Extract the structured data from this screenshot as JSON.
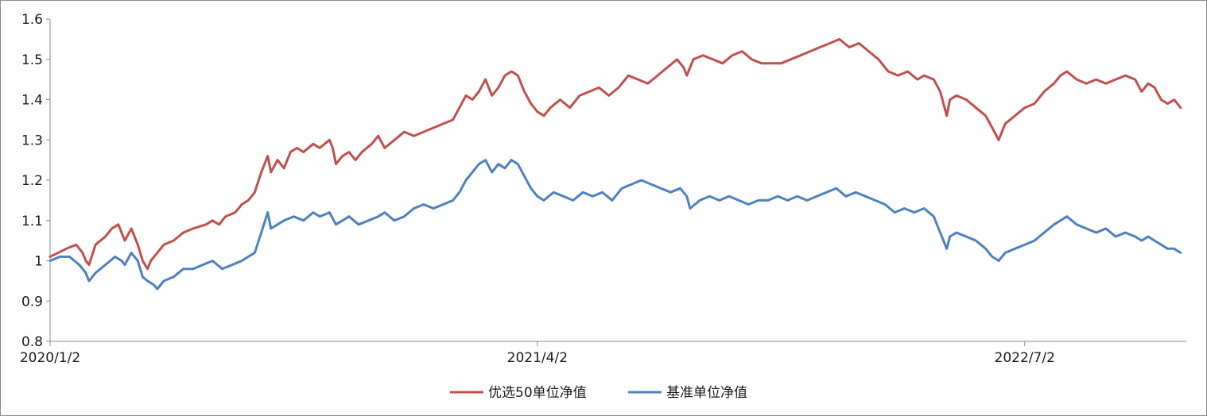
{
  "chart_data": {
    "type": "line",
    "title": "",
    "xlabel": "",
    "ylabel": "",
    "x_tick_labels": [
      "2020/1/2",
      "2021/4/2",
      "2022/7/2"
    ],
    "x_tick_months": [
      0,
      15,
      30
    ],
    "x_range_months": [
      0,
      35
    ],
    "ylim": [
      0.8,
      1.6
    ],
    "y_ticks": [
      0.8,
      0.9,
      1.0,
      1.1,
      1.2,
      1.3,
      1.4,
      1.5,
      1.6
    ],
    "y_tick_labels": [
      "0.8",
      "0.9",
      "1",
      "1.1",
      "1.2",
      "1.3",
      "1.4",
      "1.5",
      "1.6"
    ],
    "grid": false,
    "legend_position": "bottom",
    "series": [
      {
        "name": "优选50单位净值",
        "color": "#c0504d",
        "points": [
          [
            0.0,
            1.01
          ],
          [
            0.5,
            1.03
          ],
          [
            0.8,
            1.04
          ],
          [
            1.0,
            1.02
          ],
          [
            1.1,
            1.0
          ],
          [
            1.2,
            0.99
          ],
          [
            1.4,
            1.04
          ],
          [
            1.7,
            1.06
          ],
          [
            1.9,
            1.08
          ],
          [
            2.1,
            1.09
          ],
          [
            2.3,
            1.05
          ],
          [
            2.5,
            1.08
          ],
          [
            2.6,
            1.06
          ],
          [
            2.7,
            1.04
          ],
          [
            2.85,
            1.0
          ],
          [
            3.0,
            0.98
          ],
          [
            3.1,
            1.0
          ],
          [
            3.3,
            1.02
          ],
          [
            3.5,
            1.04
          ],
          [
            3.8,
            1.05
          ],
          [
            4.1,
            1.07
          ],
          [
            4.4,
            1.08
          ],
          [
            4.8,
            1.09
          ],
          [
            5.0,
            1.1
          ],
          [
            5.2,
            1.09
          ],
          [
            5.4,
            1.11
          ],
          [
            5.7,
            1.12
          ],
          [
            5.9,
            1.14
          ],
          [
            6.1,
            1.15
          ],
          [
            6.3,
            1.17
          ],
          [
            6.5,
            1.22
          ],
          [
            6.7,
            1.26
          ],
          [
            6.8,
            1.22
          ],
          [
            7.0,
            1.25
          ],
          [
            7.2,
            1.23
          ],
          [
            7.4,
            1.27
          ],
          [
            7.6,
            1.28
          ],
          [
            7.8,
            1.27
          ],
          [
            8.1,
            1.29
          ],
          [
            8.3,
            1.28
          ],
          [
            8.6,
            1.3
          ],
          [
            8.7,
            1.28
          ],
          [
            8.8,
            1.24
          ],
          [
            9.0,
            1.26
          ],
          [
            9.2,
            1.27
          ],
          [
            9.4,
            1.25
          ],
          [
            9.6,
            1.27
          ],
          [
            9.9,
            1.29
          ],
          [
            10.1,
            1.31
          ],
          [
            10.3,
            1.28
          ],
          [
            10.6,
            1.3
          ],
          [
            10.9,
            1.32
          ],
          [
            11.2,
            1.31
          ],
          [
            11.5,
            1.32
          ],
          [
            11.8,
            1.33
          ],
          [
            12.1,
            1.34
          ],
          [
            12.4,
            1.35
          ],
          [
            12.6,
            1.38
          ],
          [
            12.8,
            1.41
          ],
          [
            13.0,
            1.4
          ],
          [
            13.2,
            1.42
          ],
          [
            13.4,
            1.45
          ],
          [
            13.5,
            1.43
          ],
          [
            13.6,
            1.41
          ],
          [
            13.8,
            1.43
          ],
          [
            14.0,
            1.46
          ],
          [
            14.2,
            1.47
          ],
          [
            14.4,
            1.46
          ],
          [
            14.6,
            1.42
          ],
          [
            14.8,
            1.39
          ],
          [
            15.0,
            1.37
          ],
          [
            15.2,
            1.36
          ],
          [
            15.4,
            1.38
          ],
          [
            15.7,
            1.4
          ],
          [
            16.0,
            1.38
          ],
          [
            16.3,
            1.41
          ],
          [
            16.6,
            1.42
          ],
          [
            16.9,
            1.43
          ],
          [
            17.2,
            1.41
          ],
          [
            17.5,
            1.43
          ],
          [
            17.8,
            1.46
          ],
          [
            18.1,
            1.45
          ],
          [
            18.4,
            1.44
          ],
          [
            18.7,
            1.46
          ],
          [
            19.0,
            1.48
          ],
          [
            19.3,
            1.5
          ],
          [
            19.5,
            1.48
          ],
          [
            19.6,
            1.46
          ],
          [
            19.8,
            1.5
          ],
          [
            20.1,
            1.51
          ],
          [
            20.4,
            1.5
          ],
          [
            20.7,
            1.49
          ],
          [
            21.0,
            1.51
          ],
          [
            21.3,
            1.52
          ],
          [
            21.6,
            1.5
          ],
          [
            21.9,
            1.49
          ],
          [
            22.2,
            1.49
          ],
          [
            22.5,
            1.49
          ],
          [
            22.8,
            1.5
          ],
          [
            23.1,
            1.51
          ],
          [
            23.4,
            1.52
          ],
          [
            23.7,
            1.53
          ],
          [
            24.0,
            1.54
          ],
          [
            24.3,
            1.55
          ],
          [
            24.6,
            1.53
          ],
          [
            24.9,
            1.54
          ],
          [
            25.2,
            1.52
          ],
          [
            25.5,
            1.5
          ],
          [
            25.8,
            1.47
          ],
          [
            26.1,
            1.46
          ],
          [
            26.4,
            1.47
          ],
          [
            26.7,
            1.45
          ],
          [
            26.9,
            1.46
          ],
          [
            27.2,
            1.45
          ],
          [
            27.4,
            1.42
          ],
          [
            27.6,
            1.36
          ],
          [
            27.7,
            1.4
          ],
          [
            27.9,
            1.41
          ],
          [
            28.2,
            1.4
          ],
          [
            28.5,
            1.38
          ],
          [
            28.8,
            1.36
          ],
          [
            29.0,
            1.33
          ],
          [
            29.2,
            1.3
          ],
          [
            29.4,
            1.34
          ],
          [
            29.7,
            1.36
          ],
          [
            30.0,
            1.38
          ],
          [
            30.3,
            1.39
          ],
          [
            30.6,
            1.42
          ],
          [
            30.9,
            1.44
          ],
          [
            31.1,
            1.46
          ],
          [
            31.3,
            1.47
          ],
          [
            31.6,
            1.45
          ],
          [
            31.9,
            1.44
          ],
          [
            32.2,
            1.45
          ],
          [
            32.5,
            1.44
          ],
          [
            32.8,
            1.45
          ],
          [
            33.1,
            1.46
          ],
          [
            33.4,
            1.45
          ],
          [
            33.6,
            1.42
          ],
          [
            33.8,
            1.44
          ],
          [
            34.0,
            1.43
          ],
          [
            34.2,
            1.4
          ],
          [
            34.4,
            1.39
          ],
          [
            34.6,
            1.4
          ],
          [
            34.8,
            1.38
          ]
        ]
      },
      {
        "name": "基准单位净值",
        "color": "#4f81bd",
        "points": [
          [
            0.0,
            1.0
          ],
          [
            0.3,
            1.01
          ],
          [
            0.6,
            1.01
          ],
          [
            0.9,
            0.99
          ],
          [
            1.1,
            0.97
          ],
          [
            1.2,
            0.95
          ],
          [
            1.4,
            0.97
          ],
          [
            1.7,
            0.99
          ],
          [
            2.0,
            1.01
          ],
          [
            2.2,
            1.0
          ],
          [
            2.3,
            0.99
          ],
          [
            2.5,
            1.02
          ],
          [
            2.7,
            1.0
          ],
          [
            2.85,
            0.96
          ],
          [
            3.0,
            0.95
          ],
          [
            3.2,
            0.94
          ],
          [
            3.3,
            0.93
          ],
          [
            3.5,
            0.95
          ],
          [
            3.8,
            0.96
          ],
          [
            4.1,
            0.98
          ],
          [
            4.4,
            0.98
          ],
          [
            4.7,
            0.99
          ],
          [
            5.0,
            1.0
          ],
          [
            5.3,
            0.98
          ],
          [
            5.6,
            0.99
          ],
          [
            5.9,
            1.0
          ],
          [
            6.1,
            1.01
          ],
          [
            6.3,
            1.02
          ],
          [
            6.5,
            1.07
          ],
          [
            6.7,
            1.12
          ],
          [
            6.8,
            1.08
          ],
          [
            7.0,
            1.09
          ],
          [
            7.2,
            1.1
          ],
          [
            7.5,
            1.11
          ],
          [
            7.8,
            1.1
          ],
          [
            8.1,
            1.12
          ],
          [
            8.3,
            1.11
          ],
          [
            8.6,
            1.12
          ],
          [
            8.8,
            1.09
          ],
          [
            9.0,
            1.1
          ],
          [
            9.2,
            1.11
          ],
          [
            9.5,
            1.09
          ],
          [
            9.8,
            1.1
          ],
          [
            10.1,
            1.11
          ],
          [
            10.3,
            1.12
          ],
          [
            10.6,
            1.1
          ],
          [
            10.9,
            1.11
          ],
          [
            11.2,
            1.13
          ],
          [
            11.5,
            1.14
          ],
          [
            11.8,
            1.13
          ],
          [
            12.1,
            1.14
          ],
          [
            12.4,
            1.15
          ],
          [
            12.6,
            1.17
          ],
          [
            12.8,
            1.2
          ],
          [
            13.0,
            1.22
          ],
          [
            13.2,
            1.24
          ],
          [
            13.4,
            1.25
          ],
          [
            13.6,
            1.22
          ],
          [
            13.8,
            1.24
          ],
          [
            14.0,
            1.23
          ],
          [
            14.2,
            1.25
          ],
          [
            14.4,
            1.24
          ],
          [
            14.6,
            1.21
          ],
          [
            14.8,
            1.18
          ],
          [
            15.0,
            1.16
          ],
          [
            15.2,
            1.15
          ],
          [
            15.5,
            1.17
          ],
          [
            15.8,
            1.16
          ],
          [
            16.1,
            1.15
          ],
          [
            16.4,
            1.17
          ],
          [
            16.7,
            1.16
          ],
          [
            17.0,
            1.17
          ],
          [
            17.3,
            1.15
          ],
          [
            17.6,
            1.18
          ],
          [
            17.9,
            1.19
          ],
          [
            18.2,
            1.2
          ],
          [
            18.5,
            1.19
          ],
          [
            18.8,
            1.18
          ],
          [
            19.1,
            1.17
          ],
          [
            19.4,
            1.18
          ],
          [
            19.6,
            1.16
          ],
          [
            19.7,
            1.13
          ],
          [
            20.0,
            1.15
          ],
          [
            20.3,
            1.16
          ],
          [
            20.6,
            1.15
          ],
          [
            20.9,
            1.16
          ],
          [
            21.2,
            1.15
          ],
          [
            21.5,
            1.14
          ],
          [
            21.8,
            1.15
          ],
          [
            22.1,
            1.15
          ],
          [
            22.4,
            1.16
          ],
          [
            22.7,
            1.15
          ],
          [
            23.0,
            1.16
          ],
          [
            23.3,
            1.15
          ],
          [
            23.6,
            1.16
          ],
          [
            23.9,
            1.17
          ],
          [
            24.2,
            1.18
          ],
          [
            24.5,
            1.16
          ],
          [
            24.8,
            1.17
          ],
          [
            25.1,
            1.16
          ],
          [
            25.4,
            1.15
          ],
          [
            25.7,
            1.14
          ],
          [
            26.0,
            1.12
          ],
          [
            26.3,
            1.13
          ],
          [
            26.6,
            1.12
          ],
          [
            26.9,
            1.13
          ],
          [
            27.2,
            1.11
          ],
          [
            27.4,
            1.07
          ],
          [
            27.6,
            1.03
          ],
          [
            27.7,
            1.06
          ],
          [
            27.9,
            1.07
          ],
          [
            28.2,
            1.06
          ],
          [
            28.5,
            1.05
          ],
          [
            28.8,
            1.03
          ],
          [
            29.0,
            1.01
          ],
          [
            29.2,
            1.0
          ],
          [
            29.4,
            1.02
          ],
          [
            29.7,
            1.03
          ],
          [
            30.0,
            1.04
          ],
          [
            30.3,
            1.05
          ],
          [
            30.6,
            1.07
          ],
          [
            30.9,
            1.09
          ],
          [
            31.1,
            1.1
          ],
          [
            31.3,
            1.11
          ],
          [
            31.6,
            1.09
          ],
          [
            31.9,
            1.08
          ],
          [
            32.2,
            1.07
          ],
          [
            32.5,
            1.08
          ],
          [
            32.8,
            1.06
          ],
          [
            33.1,
            1.07
          ],
          [
            33.4,
            1.06
          ],
          [
            33.6,
            1.05
          ],
          [
            33.8,
            1.06
          ],
          [
            34.0,
            1.05
          ],
          [
            34.2,
            1.04
          ],
          [
            34.4,
            1.03
          ],
          [
            34.6,
            1.03
          ],
          [
            34.8,
            1.02
          ]
        ]
      }
    ]
  }
}
